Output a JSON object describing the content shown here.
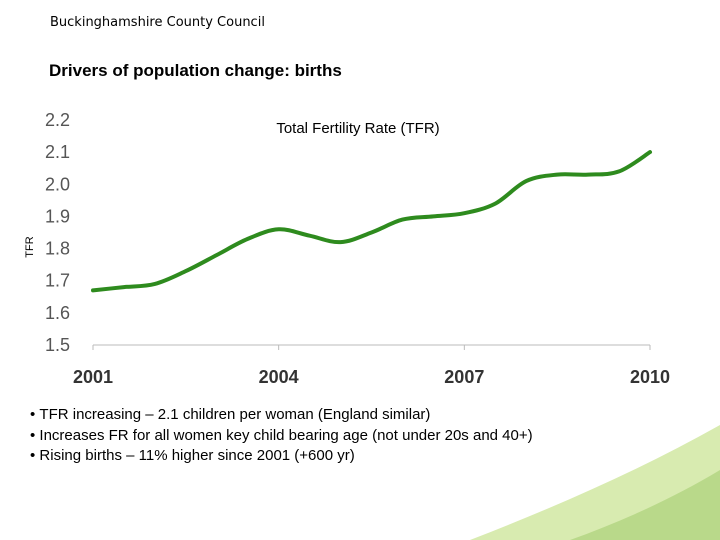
{
  "header": {
    "organisation": "Buckinghamshire County Council",
    "slide_title": "Drivers of population change: births"
  },
  "chart_data": {
    "type": "line",
    "title": "Total Fertility Rate (TFR)",
    "xlabel": "",
    "ylabel": "TFR",
    "x": [
      2001,
      2001.5,
      2002,
      2002.5,
      2003,
      2003.5,
      2004,
      2004.5,
      2005,
      2005.5,
      2006,
      2006.5,
      2007,
      2007.5,
      2008,
      2008.5,
      2009,
      2009.5,
      2010
    ],
    "series": [
      {
        "name": "TFR",
        "color": "#2e8b1e",
        "values": [
          1.67,
          1.68,
          1.69,
          1.73,
          1.78,
          1.83,
          1.86,
          1.84,
          1.82,
          1.85,
          1.89,
          1.9,
          1.91,
          1.94,
          2.01,
          2.03,
          2.03,
          2.04,
          2.1
        ]
      }
    ],
    "xticks": [
      2001,
      2004,
      2007,
      2010
    ],
    "xtick_labels": [
      "2001",
      "2004",
      "2007",
      "2010"
    ],
    "yticks": [
      1.5,
      1.6,
      1.7,
      1.8,
      1.9,
      2.0,
      2.1,
      2.2
    ],
    "ytick_labels": [
      "1.5",
      "1.6",
      "1.7",
      "1.8",
      "1.9",
      "2.0",
      "2.1",
      "2.2"
    ],
    "xlim": [
      2001,
      2010
    ],
    "ylim": [
      1.5,
      2.2
    ],
    "grid": false
  },
  "bullets": [
    "TFR increasing – 2.1 children per woman (England similar)",
    "Increases FR for all women key child bearing age (not under 20s and 40+)",
    "Rising births – 11% higher since 2001 (+600 yr)"
  ],
  "colors": {
    "accent": "#2e8b1e",
    "deco_light": "#d8ebb0",
    "deco_mid": "#b9d98a"
  }
}
